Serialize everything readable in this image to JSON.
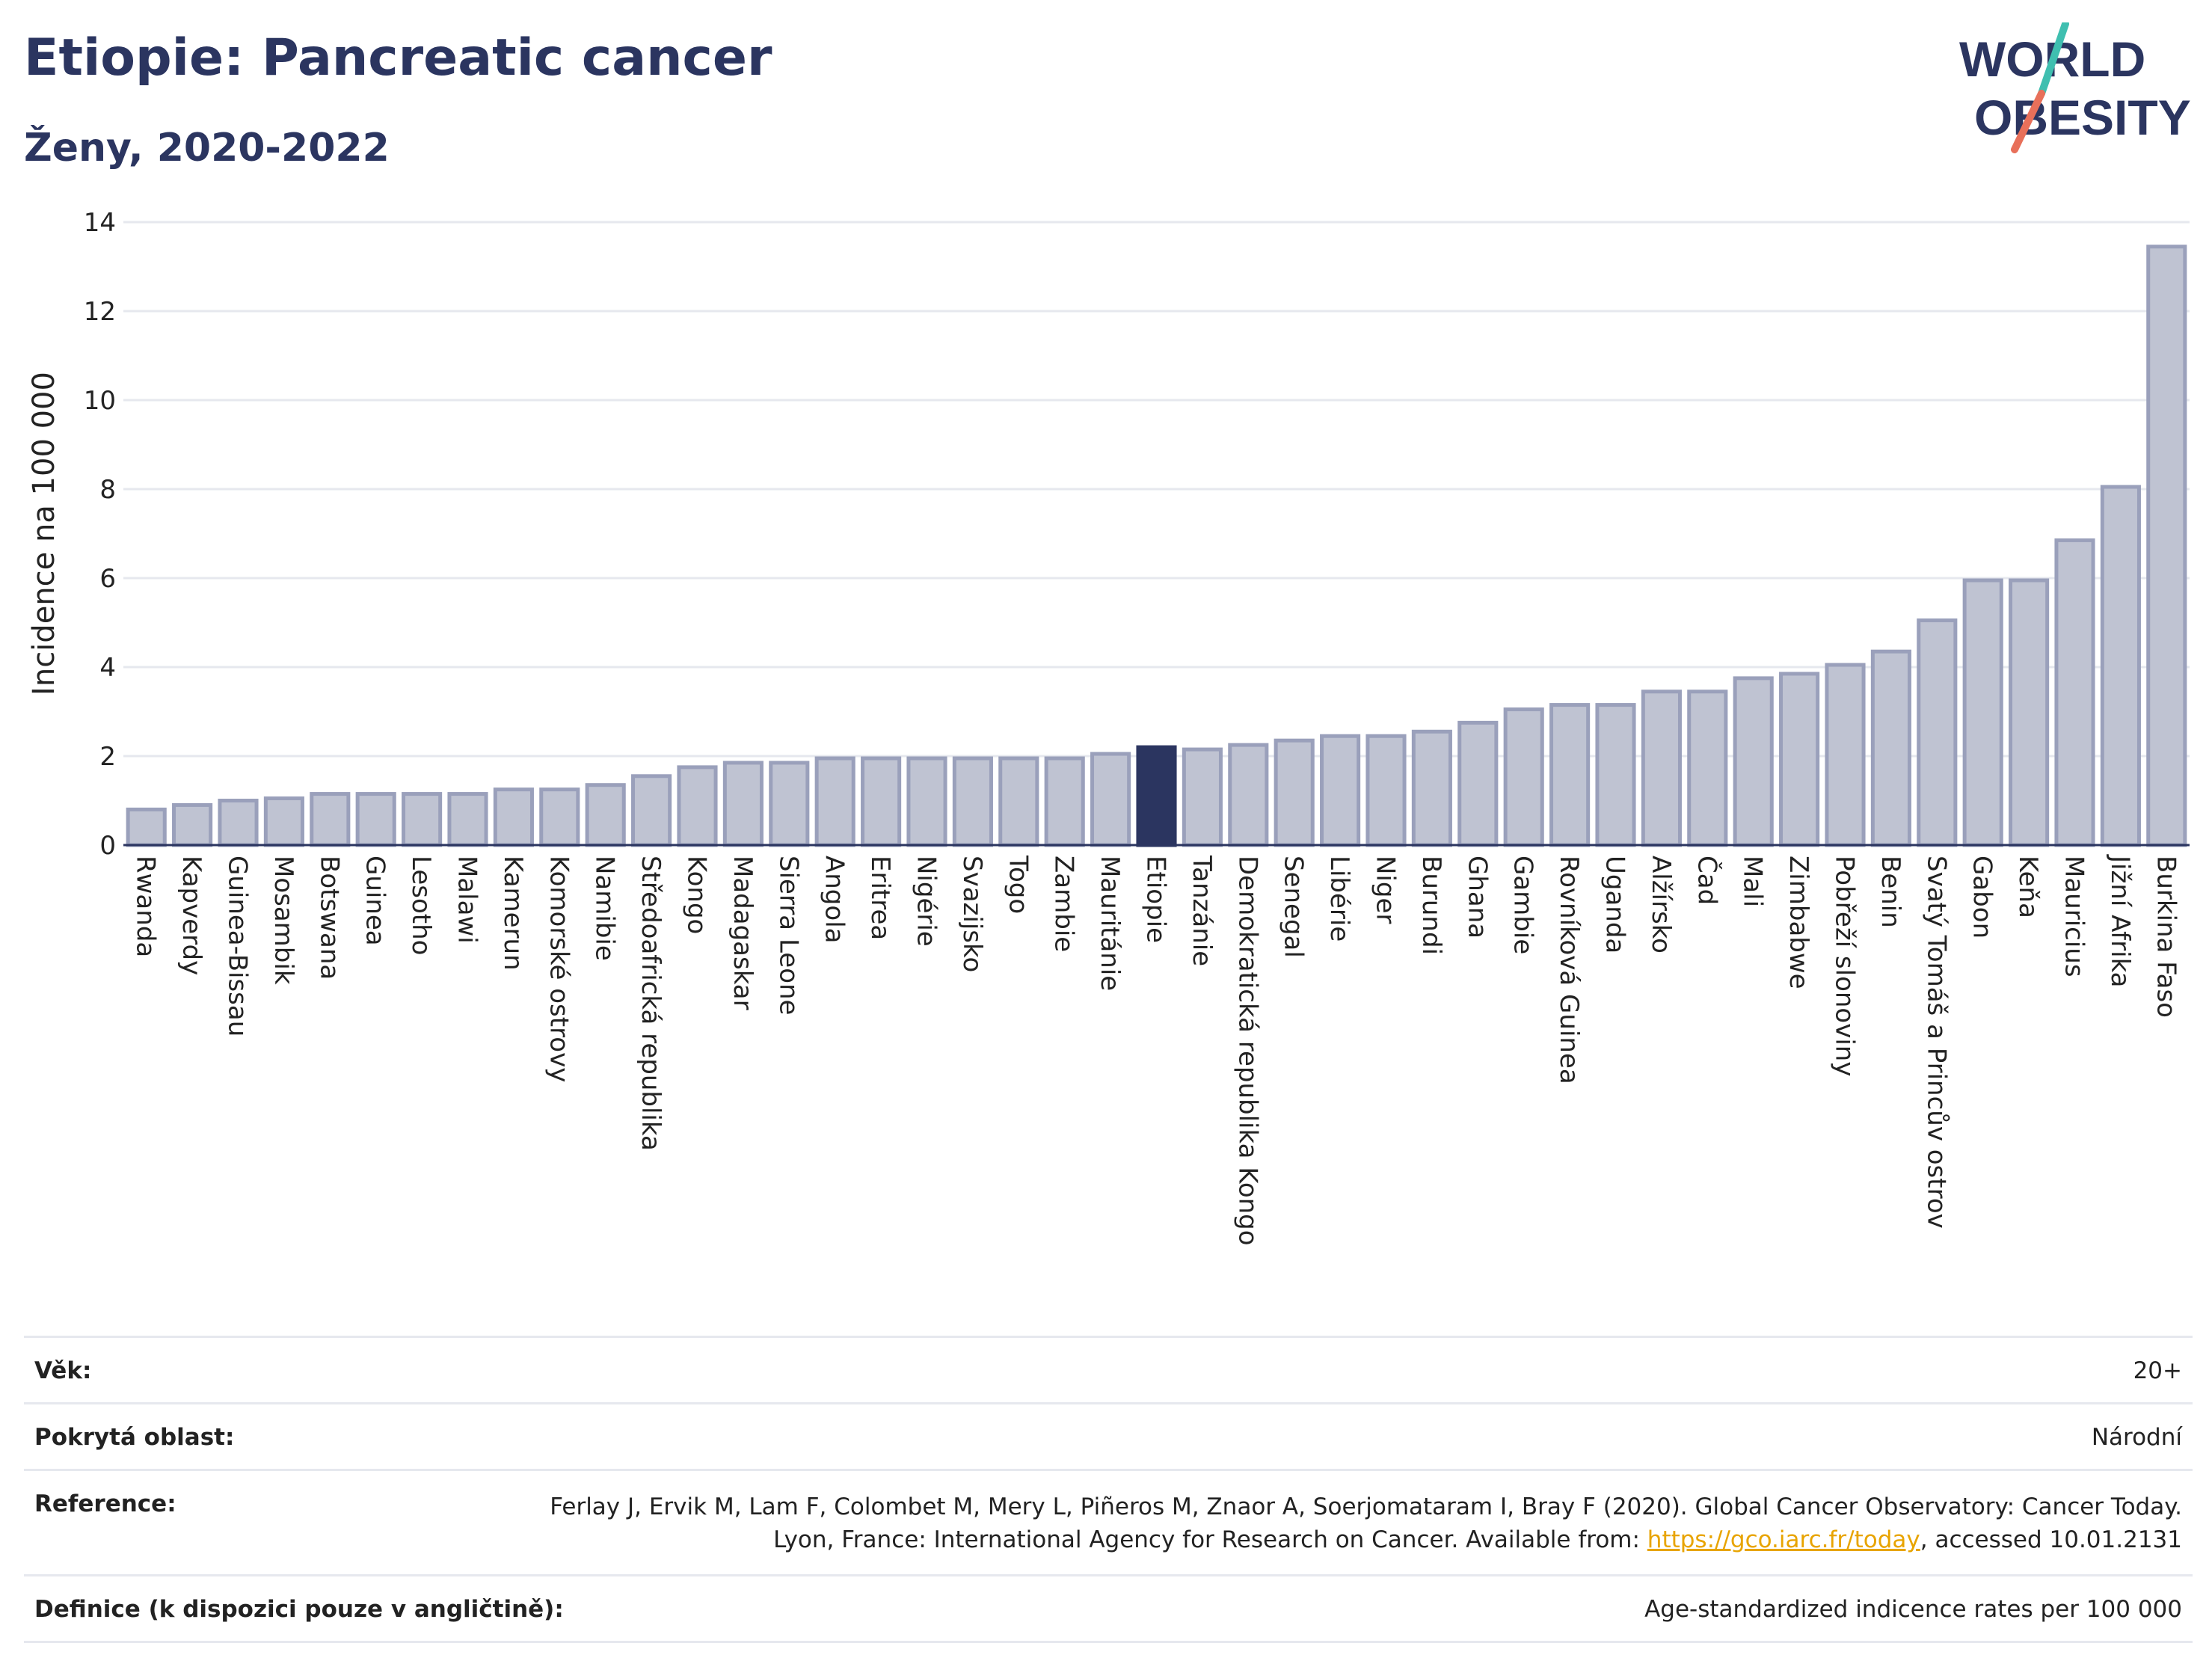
{
  "header": {
    "title": "Etiopie: Pancreatic cancer",
    "subtitle": "Ženy, 2020-2022",
    "logo_line1": "WORLD",
    "logo_line2": "OBESITY"
  },
  "colors": {
    "bar": "#bfc3d2",
    "bar_stroke": "#9aa0bb",
    "highlight": "#2b3560",
    "grid": "#e6e8ee",
    "text": "#2b3560",
    "link": "#e8a400",
    "logo_teal": "#3fbfb0",
    "logo_coral": "#e8705a"
  },
  "chart_data": {
    "type": "bar",
    "title": "Etiopie: Pancreatic cancer",
    "subtitle": "Ženy, 2020-2022",
    "ylabel": "Incidence na 100 000",
    "xlabel": "",
    "ylim": [
      0,
      14
    ],
    "yticks": [
      0,
      2,
      4,
      6,
      8,
      10,
      12,
      14
    ],
    "grid": true,
    "highlight": "Etiopie",
    "categories": [
      "Rwanda",
      "Kapverdy",
      "Guinea-Bissau",
      "Mosambik",
      "Botswana",
      "Guinea",
      "Lesotho",
      "Malawi",
      "Kamerun",
      "Komorské ostrovy",
      "Namibie",
      "Středoafrická republika",
      "Kongo",
      "Madagaskar",
      "Sierra Leone",
      "Angola",
      "Eritrea",
      "Nigérie",
      "Svazijsko",
      "Togo",
      "Zambie",
      "Mauritánie",
      "Etiopie",
      "Tanzánie",
      "Demokratická republika Kongo",
      "Senegal",
      "Libérie",
      "Niger",
      "Burundi",
      "Ghana",
      "Gambie",
      "Rovníková Guinea",
      "Uganda",
      "Alžírsko",
      "Čad",
      "Mali",
      "Zimbabwe",
      "Pobřeží slonoviny",
      "Benin",
      "Svatý Tomáš a Princův ostrov",
      "Gabon",
      "Keňa",
      "Mauricius",
      "Jižní Afrika",
      "Burkina Faso"
    ],
    "values": [
      0.8,
      0.9,
      1.0,
      1.05,
      1.15,
      1.15,
      1.15,
      1.15,
      1.25,
      1.25,
      1.35,
      1.55,
      1.75,
      1.85,
      1.85,
      1.95,
      1.95,
      1.95,
      1.95,
      1.95,
      1.95,
      2.05,
      2.2,
      2.15,
      2.25,
      2.35,
      2.45,
      2.45,
      2.55,
      2.75,
      3.05,
      3.15,
      3.15,
      3.45,
      3.45,
      3.75,
      3.85,
      4.05,
      4.35,
      5.05,
      5.95,
      5.95,
      6.85,
      8.05,
      13.45
    ]
  },
  "info": {
    "age_label": "Věk:",
    "age_value": "20+",
    "area_label": "Pokrytá oblast:",
    "area_value": "Národní",
    "ref_label": "Reference:",
    "ref_text": "Ferlay J, Ervik M, Lam F, Colombet M, Mery L, Piñeros M, Znaor A, Soerjomataram I, Bray F (2020). Global Cancer Observatory: Cancer Today. Lyon, France: International Agency for Research on Cancer. Available from: ",
    "ref_link": "https://gco.iarc.fr/today",
    "ref_suffix": ", accessed 10.01.2131",
    "def_label": "Definice (k dispozici pouze v angličtině):",
    "def_value": "Age-standardized indicence rates per 100 000"
  }
}
